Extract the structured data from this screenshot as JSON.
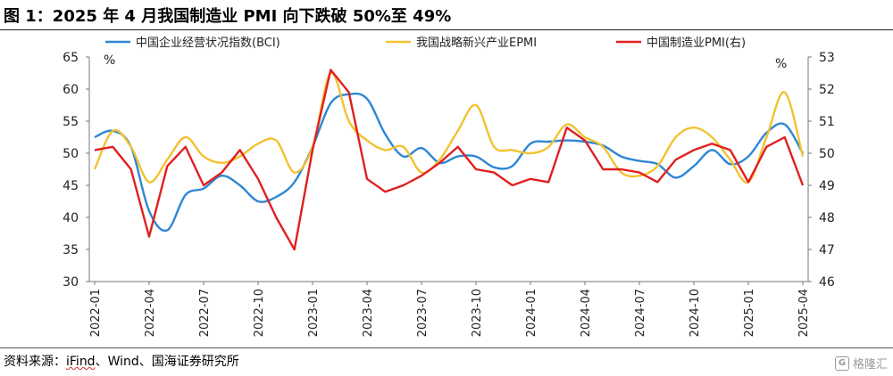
{
  "title": "图 1：2025 年 4 月我国制造业 PMI 向下跌破 50%至 49%",
  "source_prefix": "资料来源：",
  "source_ifind": "iFind",
  "source_rest": "、Wind、国海证券研究所",
  "watermark": "格隆汇",
  "chart_data": {
    "type": "line",
    "left_unit": "%",
    "right_unit": "%",
    "left_ylim": [
      30,
      65
    ],
    "right_ylim": [
      46,
      53
    ],
    "left_ticks": [
      30,
      35,
      40,
      45,
      50,
      55,
      60,
      65
    ],
    "right_ticks": [
      46,
      47,
      48,
      49,
      50,
      51,
      52,
      53
    ],
    "x_ticks": [
      "2022-01",
      "2022-04",
      "2022-07",
      "2022-10",
      "2023-01",
      "2023-04",
      "2023-07",
      "2023-10",
      "2024-01",
      "2024-04",
      "2024-07",
      "2024-10",
      "2025-01",
      "2025-04"
    ],
    "grid": false,
    "legend_position": "top",
    "series": [
      {
        "name": "中国企业经营状况指数(BCI)",
        "color": "#2e86d4",
        "axis": "left",
        "x": [
          "2022-01",
          "2022-02",
          "2022-03",
          "2022-04",
          "2022-05",
          "2022-06",
          "2022-07",
          "2022-08",
          "2022-09",
          "2022-10",
          "2022-11",
          "2022-12",
          "2023-01",
          "2023-02",
          "2023-03",
          "2023-04",
          "2023-05",
          "2023-06",
          "2023-07",
          "2023-08",
          "2023-09",
          "2023-10",
          "2023-11",
          "2023-12",
          "2024-01",
          "2024-02",
          "2024-03",
          "2024-04",
          "2024-05",
          "2024-06",
          "2024-07",
          "2024-08",
          "2024-09",
          "2024-10",
          "2024-11",
          "2024-12",
          "2025-01",
          "2025-02",
          "2025-03",
          "2025-04"
        ],
        "values": [
          52.5,
          53.5,
          51.0,
          41.0,
          38.0,
          43.5,
          44.5,
          46.5,
          45.0,
          42.5,
          43.2,
          45.5,
          51.0,
          57.8,
          59.2,
          58.5,
          53.0,
          49.5,
          50.8,
          48.5,
          49.5,
          49.5,
          47.8,
          48.0,
          51.5,
          51.8,
          52.0,
          51.8,
          51.2,
          49.5,
          48.8,
          48.3,
          46.2,
          48.0,
          50.5,
          48.3,
          49.5,
          53.2,
          54.5,
          50.0
        ]
      },
      {
        "name": "我国战略新兴产业EPMI",
        "color": "#f2c230",
        "axis": "left",
        "x": [
          "2022-01",
          "2022-02",
          "2022-03",
          "2022-04",
          "2022-05",
          "2022-06",
          "2022-07",
          "2022-08",
          "2022-09",
          "2022-10",
          "2022-11",
          "2022-12",
          "2023-01",
          "2023-02",
          "2023-03",
          "2023-04",
          "2023-05",
          "2023-06",
          "2023-07",
          "2023-08",
          "2023-09",
          "2023-10",
          "2023-11",
          "2023-12",
          "2024-01",
          "2024-02",
          "2024-03",
          "2024-04",
          "2024-05",
          "2024-06",
          "2024-07",
          "2024-08",
          "2024-09",
          "2024-10",
          "2024-11",
          "2024-12",
          "2025-01",
          "2025-02",
          "2025-03",
          "2025-04"
        ],
        "values": [
          47.5,
          53.5,
          51.0,
          45.5,
          49.0,
          52.5,
          49.5,
          48.5,
          49.5,
          51.5,
          52.0,
          47.0,
          51.0,
          62.5,
          55.0,
          52.0,
          50.5,
          51.0,
          47.0,
          49.0,
          53.5,
          57.5,
          51.0,
          50.5,
          50.0,
          51.0,
          54.5,
          52.5,
          51.0,
          47.0,
          46.5,
          48.0,
          52.5,
          54.0,
          52.5,
          49.0,
          45.5,
          52.5,
          59.5,
          49.5
        ]
      },
      {
        "name": "中国制造业PMI(右)",
        "color": "#e02020",
        "axis": "right",
        "x": [
          "2022-01",
          "2022-02",
          "2022-03",
          "2022-04",
          "2022-05",
          "2022-06",
          "2022-07",
          "2022-08",
          "2022-09",
          "2022-10",
          "2022-11",
          "2022-12",
          "2023-01",
          "2023-02",
          "2023-03",
          "2023-04",
          "2023-05",
          "2023-06",
          "2023-07",
          "2023-08",
          "2023-09",
          "2023-10",
          "2023-11",
          "2023-12",
          "2024-01",
          "2024-02",
          "2024-03",
          "2024-04",
          "2024-05",
          "2024-06",
          "2024-07",
          "2024-08",
          "2024-09",
          "2024-10",
          "2024-11",
          "2024-12",
          "2025-01",
          "2025-02",
          "2025-03",
          "2025-04"
        ],
        "values": [
          50.1,
          50.2,
          49.5,
          47.4,
          49.6,
          50.2,
          49.0,
          49.4,
          50.1,
          49.2,
          48.0,
          47.0,
          50.1,
          52.6,
          51.9,
          49.2,
          48.8,
          49.0,
          49.3,
          49.7,
          50.2,
          49.5,
          49.4,
          49.0,
          49.2,
          49.1,
          50.8,
          50.4,
          49.5,
          49.5,
          49.4,
          49.1,
          49.8,
          50.1,
          50.3,
          50.1,
          49.1,
          50.2,
          50.5,
          49.0
        ]
      }
    ]
  }
}
